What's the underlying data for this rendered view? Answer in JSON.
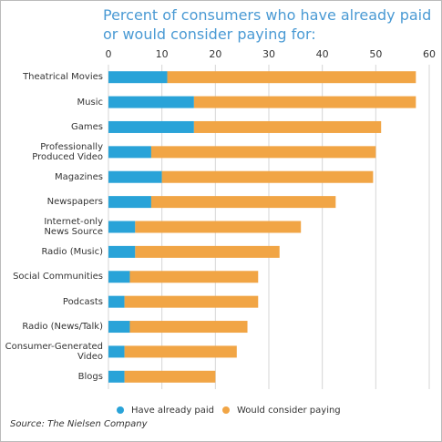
{
  "chart_data": {
    "type": "stacked-bar-horizontal",
    "title": "Percent of consumers who have already paid\nor would consider paying for:",
    "categories": [
      "Theatrical Movies",
      "Music",
      "Games",
      "Professionally\nProduced Video",
      "Magazines",
      "Newspapers",
      "Internet-only\nNews Source",
      "Radio (Music)",
      "Social Communities",
      "Podcasts",
      "Radio (News/Talk)",
      "Consumer-Generated\nVideo",
      "Blogs"
    ],
    "series": [
      {
        "name": "Have already paid",
        "color": "#29a3d8",
        "values": [
          11,
          16,
          16,
          8,
          10,
          8,
          5,
          5,
          4,
          3,
          4,
          3,
          3
        ]
      },
      {
        "name": "Would consider paying",
        "color": "#f1a545",
        "values": [
          46.5,
          41.5,
          35,
          42,
          39.5,
          34.5,
          31,
          27,
          24,
          25,
          22,
          21,
          17
        ]
      }
    ],
    "xlim": [
      0,
      60
    ],
    "xticks": [
      0,
      10,
      20,
      30,
      40,
      50,
      60
    ],
    "grid": true,
    "source": "Source: The Nielsen Company"
  }
}
